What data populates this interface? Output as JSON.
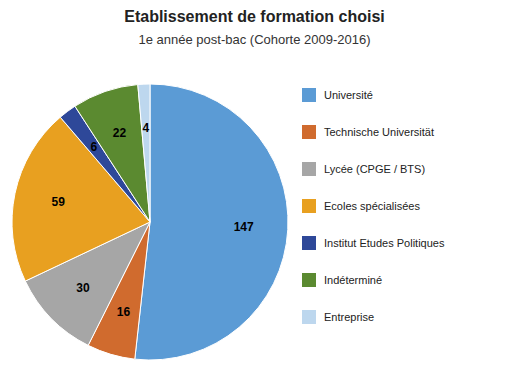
{
  "chart_data": {
    "type": "pie",
    "title": "Etablissement de formation choisi",
    "subtitle": "1e année post-bac (Cohorte 2009-2016)",
    "categories": [
      "Université",
      "Technische Universität",
      "Lycée (CPGE / BTS)",
      "Ecoles spécialisées",
      "Institut Etudes Politiques",
      "Indéterminé",
      "Entreprise"
    ],
    "values": [
      147,
      16,
      30,
      59,
      6,
      22,
      4
    ],
    "colors": [
      "#5B9BD5",
      "#D06B2E",
      "#A6A6A6",
      "#E8A020",
      "#2E4899",
      "#5B8A30",
      "#BDD7EE"
    ],
    "data_labels": true,
    "legend": "right"
  }
}
